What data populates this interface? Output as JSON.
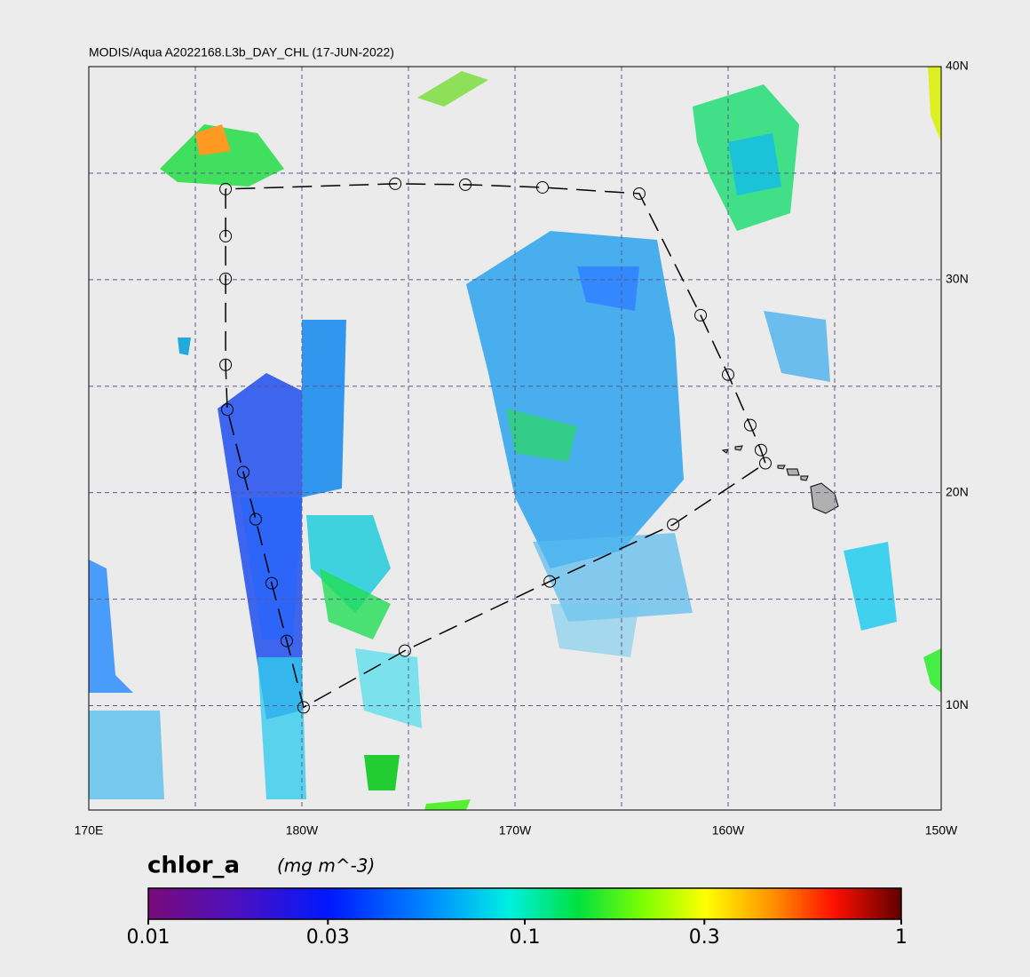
{
  "header": {
    "title": "MODIS/Aqua A2022168.L3b_DAY_CHL (17-JUN-2022)"
  },
  "map": {
    "xlim": [
      170,
      210
    ],
    "ylim": [
      5.1,
      40
    ],
    "xticks": [
      {
        "value": 170,
        "label": "170E"
      },
      {
        "value": 180,
        "label": "180W"
      },
      {
        "value": 190,
        "label": "170W"
      },
      {
        "value": 200,
        "label": "160W"
      },
      {
        "value": 210,
        "label": "150W"
      }
    ],
    "yticks": [
      {
        "value": 40,
        "label": "40N"
      },
      {
        "value": 30,
        "label": "30N"
      },
      {
        "value": 20,
        "label": "20N"
      },
      {
        "value": 10,
        "label": "10N"
      }
    ],
    "track": [
      [
        176.42,
        34.25
      ],
      [
        176.42,
        32.04
      ],
      [
        176.42,
        30.04
      ],
      [
        176.42,
        26.0
      ],
      [
        176.5,
        23.9
      ],
      [
        177.25,
        20.96
      ],
      [
        177.83,
        18.75
      ],
      [
        178.58,
        15.75
      ],
      [
        179.29,
        13.04
      ],
      [
        180.08,
        9.92
      ],
      [
        184.83,
        12.58
      ],
      [
        191.63,
        15.83
      ],
      [
        197.42,
        18.5
      ],
      [
        201.75,
        21.38
      ],
      [
        201.54,
        22.0
      ],
      [
        201.04,
        23.17
      ],
      [
        200.0,
        25.54
      ],
      [
        198.71,
        28.33
      ],
      [
        195.83,
        34.04
      ],
      [
        191.29,
        34.33
      ],
      [
        187.67,
        34.46
      ],
      [
        184.38,
        34.5
      ],
      [
        176.42,
        34.25
      ]
    ]
  },
  "colorbar": {
    "label": "chlor_a",
    "units": "(mg m^-3)",
    "scale": "log",
    "lim": [
      0.01,
      1
    ],
    "ticks": [
      0.01,
      0.03,
      0.1,
      0.3,
      1
    ]
  }
}
